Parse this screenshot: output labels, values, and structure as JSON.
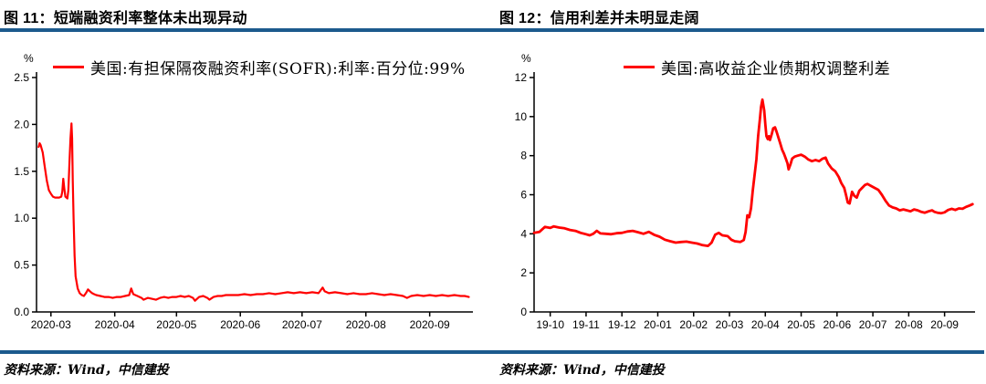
{
  "page": {
    "background": "#FFFFFF",
    "divider_color": "#1C5A8D"
  },
  "chart_data": [
    {
      "type": "line",
      "title": "图 11：短端融资利率整体未出现异动",
      "unit": "%",
      "ylabel": "%",
      "xlabel": "",
      "legend_position": "top",
      "source": "资料来源：Wind，中信建投",
      "line_color": "#FF0000",
      "line_width": 2.2,
      "grid": false,
      "ylim": [
        0,
        2.5
      ],
      "ytick_step": 0.5,
      "ytick_decimals": 1,
      "x_unit": "days since 2020-03-01",
      "xlim": [
        -7,
        205
      ],
      "xticks": [
        {
          "v": 0,
          "label": "2020-03"
        },
        {
          "v": 31,
          "label": "2020-04"
        },
        {
          "v": 61,
          "label": "2020-05"
        },
        {
          "v": 92,
          "label": "2020-06"
        },
        {
          "v": 122,
          "label": "2020-07"
        },
        {
          "v": 153,
          "label": "2020-08"
        },
        {
          "v": 184,
          "label": "2020-09"
        }
      ],
      "series": [
        {
          "name": "美国:有担保隔夜融资利率(SOFR):利率:百分位:99%",
          "points": [
            [
              -6,
              1.76
            ],
            [
              -5.5,
              1.8
            ],
            [
              -5,
              1.78
            ],
            [
              -4,
              1.7
            ],
            [
              -3,
              1.55
            ],
            [
              -2,
              1.4
            ],
            [
              -1,
              1.3
            ],
            [
              0,
              1.26
            ],
            [
              1,
              1.23
            ],
            [
              2,
              1.22
            ],
            [
              3,
              1.22
            ],
            [
              4,
              1.22
            ],
            [
              5,
              1.23
            ],
            [
              5.5,
              1.28
            ],
            [
              6,
              1.42
            ],
            [
              6.5,
              1.32
            ],
            [
              7,
              1.23
            ],
            [
              7.5,
              1.22
            ],
            [
              8,
              1.21
            ],
            [
              8.5,
              1.3
            ],
            [
              9,
              1.6
            ],
            [
              9.5,
              1.85
            ],
            [
              10,
              2.01
            ],
            [
              10.3,
              1.85
            ],
            [
              10.6,
              1.4
            ],
            [
              11,
              1.0
            ],
            [
              11.5,
              0.6
            ],
            [
              12,
              0.38
            ],
            [
              13,
              0.25
            ],
            [
              14,
              0.2
            ],
            [
              15,
              0.18
            ],
            [
              16,
              0.17
            ],
            [
              17,
              0.2
            ],
            [
              18,
              0.24
            ],
            [
              19,
              0.22
            ],
            [
              20,
              0.2
            ],
            [
              21,
              0.19
            ],
            [
              22,
              0.18
            ],
            [
              24,
              0.17
            ],
            [
              26,
              0.16
            ],
            [
              28,
              0.16
            ],
            [
              30,
              0.15
            ],
            [
              32,
              0.16
            ],
            [
              34,
              0.16
            ],
            [
              36,
              0.17
            ],
            [
              38,
              0.18
            ],
            [
              39,
              0.25
            ],
            [
              40,
              0.19
            ],
            [
              42,
              0.17
            ],
            [
              44,
              0.15
            ],
            [
              45,
              0.13
            ],
            [
              47,
              0.15
            ],
            [
              49,
              0.14
            ],
            [
              51,
              0.13
            ],
            [
              53,
              0.15
            ],
            [
              55,
              0.16
            ],
            [
              57,
              0.15
            ],
            [
              59,
              0.16
            ],
            [
              61,
              0.16
            ],
            [
              63,
              0.17
            ],
            [
              65,
              0.16
            ],
            [
              67,
              0.17
            ],
            [
              69,
              0.15
            ],
            [
              70,
              0.12
            ],
            [
              72,
              0.16
            ],
            [
              74,
              0.17
            ],
            [
              76,
              0.15
            ],
            [
              77,
              0.13
            ],
            [
              79,
              0.16
            ],
            [
              81,
              0.17
            ],
            [
              83,
              0.17
            ],
            [
              85,
              0.18
            ],
            [
              88,
              0.18
            ],
            [
              91,
              0.18
            ],
            [
              94,
              0.19
            ],
            [
              97,
              0.18
            ],
            [
              100,
              0.19
            ],
            [
              103,
              0.19
            ],
            [
              106,
              0.2
            ],
            [
              109,
              0.19
            ],
            [
              112,
              0.2
            ],
            [
              115,
              0.21
            ],
            [
              118,
              0.2
            ],
            [
              121,
              0.21
            ],
            [
              124,
              0.2
            ],
            [
              127,
              0.21
            ],
            [
              130,
              0.2
            ],
            [
              132,
              0.26
            ],
            [
              133,
              0.22
            ],
            [
              135,
              0.2
            ],
            [
              138,
              0.21
            ],
            [
              141,
              0.2
            ],
            [
              144,
              0.19
            ],
            [
              147,
              0.2
            ],
            [
              150,
              0.19
            ],
            [
              153,
              0.19
            ],
            [
              156,
              0.2
            ],
            [
              159,
              0.19
            ],
            [
              162,
              0.18
            ],
            [
              165,
              0.19
            ],
            [
              168,
              0.18
            ],
            [
              171,
              0.17
            ],
            [
              173,
              0.15
            ],
            [
              175,
              0.17
            ],
            [
              178,
              0.18
            ],
            [
              181,
              0.17
            ],
            [
              184,
              0.18
            ],
            [
              187,
              0.17
            ],
            [
              190,
              0.18
            ],
            [
              193,
              0.17
            ],
            [
              196,
              0.18
            ],
            [
              199,
              0.17
            ],
            [
              201,
              0.17
            ],
            [
              203,
              0.16
            ]
          ]
        }
      ]
    },
    {
      "type": "line",
      "title": "图 12：信用利差并未明显走阔",
      "unit": "%",
      "ylabel": "%",
      "xlabel": "",
      "legend_position": "top",
      "source": "资料来源：Wind，中信建投",
      "line_color": "#FF0000",
      "line_width": 2.8,
      "grid": false,
      "ylim": [
        0,
        12
      ],
      "ytick_step": 2,
      "ytick_decimals": 0,
      "x_unit": "months since 2019-10",
      "xlim": [
        -0.45,
        11.85
      ],
      "xticks": [
        {
          "v": 0,
          "label": "19-10"
        },
        {
          "v": 1,
          "label": "19-11"
        },
        {
          "v": 2,
          "label": "19-12"
        },
        {
          "v": 3,
          "label": "20-01"
        },
        {
          "v": 4,
          "label": "20-02"
        },
        {
          "v": 5,
          "label": "20-03"
        },
        {
          "v": 6,
          "label": "20-04"
        },
        {
          "v": 7,
          "label": "20-05"
        },
        {
          "v": 8,
          "label": "20-06"
        },
        {
          "v": 9,
          "label": "20-07"
        },
        {
          "v": 10,
          "label": "20-08"
        },
        {
          "v": 11,
          "label": "20-09"
        }
      ],
      "series": [
        {
          "name": "美国:高收益企业债期权调整利差",
          "points": [
            [
              -0.45,
              4.05
            ],
            [
              -0.3,
              4.1
            ],
            [
              -0.15,
              4.35
            ],
            [
              0,
              4.3
            ],
            [
              0.1,
              4.38
            ],
            [
              0.25,
              4.32
            ],
            [
              0.4,
              4.28
            ],
            [
              0.55,
              4.2
            ],
            [
              0.7,
              4.15
            ],
            [
              0.85,
              4.05
            ],
            [
              1,
              3.98
            ],
            [
              1.1,
              3.92
            ],
            [
              1.2,
              4.0
            ],
            [
              1.3,
              4.15
            ],
            [
              1.4,
              4.02
            ],
            [
              1.55,
              4.0
            ],
            [
              1.7,
              3.98
            ],
            [
              1.85,
              4.03
            ],
            [
              2,
              4.05
            ],
            [
              2.15,
              4.12
            ],
            [
              2.3,
              4.15
            ],
            [
              2.45,
              4.08
            ],
            [
              2.6,
              4.0
            ],
            [
              2.75,
              4.1
            ],
            [
              2.9,
              3.95
            ],
            [
              3.05,
              3.85
            ],
            [
              3.2,
              3.7
            ],
            [
              3.35,
              3.62
            ],
            [
              3.5,
              3.55
            ],
            [
              3.65,
              3.58
            ],
            [
              3.8,
              3.6
            ],
            [
              3.95,
              3.55
            ],
            [
              4.1,
              3.5
            ],
            [
              4.25,
              3.42
            ],
            [
              4.4,
              3.38
            ],
            [
              4.5,
              3.55
            ],
            [
              4.6,
              3.95
            ],
            [
              4.7,
              4.05
            ],
            [
              4.8,
              3.92
            ],
            [
              4.95,
              3.88
            ],
            [
              5.05,
              3.7
            ],
            [
              5.15,
              3.62
            ],
            [
              5.3,
              3.58
            ],
            [
              5.4,
              3.68
            ],
            [
              5.45,
              4.1
            ],
            [
              5.5,
              4.95
            ],
            [
              5.55,
              4.85
            ],
            [
              5.6,
              5.3
            ],
            [
              5.65,
              6.2
            ],
            [
              5.7,
              7.0
            ],
            [
              5.75,
              7.8
            ],
            [
              5.8,
              9.0
            ],
            [
              5.85,
              9.9
            ],
            [
              5.88,
              10.5
            ],
            [
              5.92,
              10.87
            ],
            [
              5.97,
              10.3
            ],
            [
              6,
              9.6
            ],
            [
              6.03,
              9.0
            ],
            [
              6.07,
              8.85
            ],
            [
              6.1,
              9.0
            ],
            [
              6.13,
              8.8
            ],
            [
              6.18,
              9.1
            ],
            [
              6.22,
              9.4
            ],
            [
              6.27,
              9.45
            ],
            [
              6.32,
              9.2
            ],
            [
              6.37,
              8.9
            ],
            [
              6.42,
              8.6
            ],
            [
              6.47,
              8.3
            ],
            [
              6.52,
              8.1
            ],
            [
              6.57,
              7.85
            ],
            [
              6.62,
              7.6
            ],
            [
              6.65,
              7.3
            ],
            [
              6.7,
              7.55
            ],
            [
              6.75,
              7.85
            ],
            [
              6.82,
              7.95
            ],
            [
              6.9,
              8.0
            ],
            [
              7,
              8.05
            ],
            [
              7.1,
              7.95
            ],
            [
              7.2,
              7.8
            ],
            [
              7.3,
              7.72
            ],
            [
              7.4,
              7.78
            ],
            [
              7.5,
              7.72
            ],
            [
              7.6,
              7.85
            ],
            [
              7.68,
              7.9
            ],
            [
              7.75,
              7.6
            ],
            [
              7.85,
              7.35
            ],
            [
              7.95,
              7.2
            ],
            [
              8.05,
              6.9
            ],
            [
              8.12,
              6.6
            ],
            [
              8.2,
              6.35
            ],
            [
              8.25,
              6.0
            ],
            [
              8.3,
              5.6
            ],
            [
              8.35,
              5.55
            ],
            [
              8.42,
              6.15
            ],
            [
              8.48,
              5.95
            ],
            [
              8.55,
              5.85
            ],
            [
              8.62,
              6.2
            ],
            [
              8.7,
              6.35
            ],
            [
              8.78,
              6.5
            ],
            [
              8.85,
              6.55
            ],
            [
              8.95,
              6.45
            ],
            [
              9.05,
              6.35
            ],
            [
              9.15,
              6.25
            ],
            [
              9.25,
              6.0
            ],
            [
              9.35,
              5.7
            ],
            [
              9.45,
              5.45
            ],
            [
              9.55,
              5.35
            ],
            [
              9.65,
              5.3
            ],
            [
              9.75,
              5.2
            ],
            [
              9.85,
              5.25
            ],
            [
              9.95,
              5.2
            ],
            [
              10.05,
              5.15
            ],
            [
              10.15,
              5.25
            ],
            [
              10.25,
              5.2
            ],
            [
              10.35,
              5.12
            ],
            [
              10.45,
              5.08
            ],
            [
              10.55,
              5.15
            ],
            [
              10.65,
              5.2
            ],
            [
              10.72,
              5.12
            ],
            [
              10.8,
              5.08
            ],
            [
              10.9,
              5.05
            ],
            [
              11,
              5.1
            ],
            [
              11.1,
              5.22
            ],
            [
              11.2,
              5.28
            ],
            [
              11.3,
              5.22
            ],
            [
              11.4,
              5.3
            ],
            [
              11.5,
              5.28
            ],
            [
              11.6,
              5.38
            ],
            [
              11.7,
              5.45
            ],
            [
              11.78,
              5.52
            ]
          ]
        }
      ]
    }
  ]
}
